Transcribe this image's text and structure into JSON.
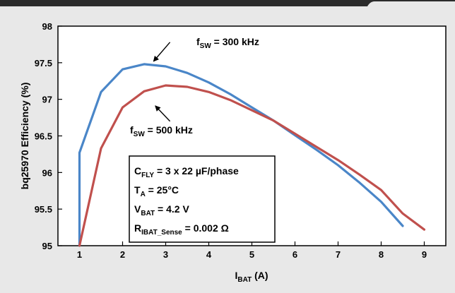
{
  "chart_data": {
    "type": "line",
    "title": "",
    "xlabel": {
      "main": "I",
      "sub": "BAT",
      "unit": " (A)"
    },
    "ylabel": "bq25970 Efficiency (%)",
    "xlim": [
      0.5,
      9.5
    ],
    "ylim": [
      95,
      98
    ],
    "xticks": [
      1,
      2,
      3,
      4,
      5,
      6,
      7,
      8,
      9
    ],
    "yticks": [
      95,
      95.5,
      96,
      96.5,
      97,
      97.5,
      98
    ],
    "xtick_labels": [
      "1",
      "2",
      "3",
      "4",
      "5",
      "6",
      "7",
      "8",
      "9"
    ],
    "ytick_labels": [
      "95",
      "95.5",
      "96",
      "96.5",
      "97",
      "97.5",
      "98"
    ],
    "grid": false,
    "series": [
      {
        "name": "300 kHz",
        "color": "#4a86c8",
        "x": [
          1.0,
          1.0,
          1.5,
          2.0,
          2.5,
          3.0,
          3.5,
          4.0,
          4.5,
          5.0,
          5.5,
          6.0,
          6.5,
          7.0,
          7.5,
          8.0,
          8.5
        ],
        "y": [
          95.0,
          96.27,
          97.1,
          97.41,
          97.48,
          97.45,
          97.36,
          97.23,
          97.07,
          96.89,
          96.71,
          96.51,
          96.31,
          96.1,
          95.86,
          95.6,
          95.27
        ]
      },
      {
        "name": "500 kHz",
        "color": "#c0504d",
        "x": [
          1.0,
          1.5,
          2.0,
          2.5,
          3.0,
          3.5,
          4.0,
          4.5,
          5.0,
          5.5,
          6.0,
          6.5,
          7.0,
          7.5,
          8.0,
          8.5,
          9.0
        ],
        "y": [
          95.0,
          96.33,
          96.89,
          97.11,
          97.19,
          97.17,
          97.1,
          96.99,
          96.85,
          96.71,
          96.53,
          96.35,
          96.17,
          95.97,
          95.76,
          95.44,
          95.22
        ]
      }
    ],
    "annotations": [
      {
        "name": "f-sw-300-label",
        "pre": "f",
        "sub": "SW",
        "post": " = 300 kHz",
        "arrow_to": [
          2.72,
          97.52
        ],
        "arrow_from": [
          3.1,
          97.78
        ]
      },
      {
        "name": "f-sw-500-label",
        "pre": "f",
        "sub": "SW",
        "post": " = 500 kHz",
        "arrow_to": [
          2.76,
          96.91
        ],
        "arrow_from": [
          3.1,
          96.7
        ]
      }
    ],
    "conditions": [
      {
        "pre": "C",
        "sub": "FLY",
        "post": " = 3 x 22 µF/phase"
      },
      {
        "pre": "T",
        "sub": "A",
        "post": " = 25°C"
      },
      {
        "pre": "V",
        "sub": "BAT",
        "post": " = 4.2 V"
      },
      {
        "pre": "R",
        "sub": "IBAT_Sense",
        "post": " = 0.002 Ω"
      }
    ]
  },
  "colors": {
    "background": "#e8e8e8",
    "plot_area": "#ffffff",
    "top_bar": "#2b2b2b"
  }
}
